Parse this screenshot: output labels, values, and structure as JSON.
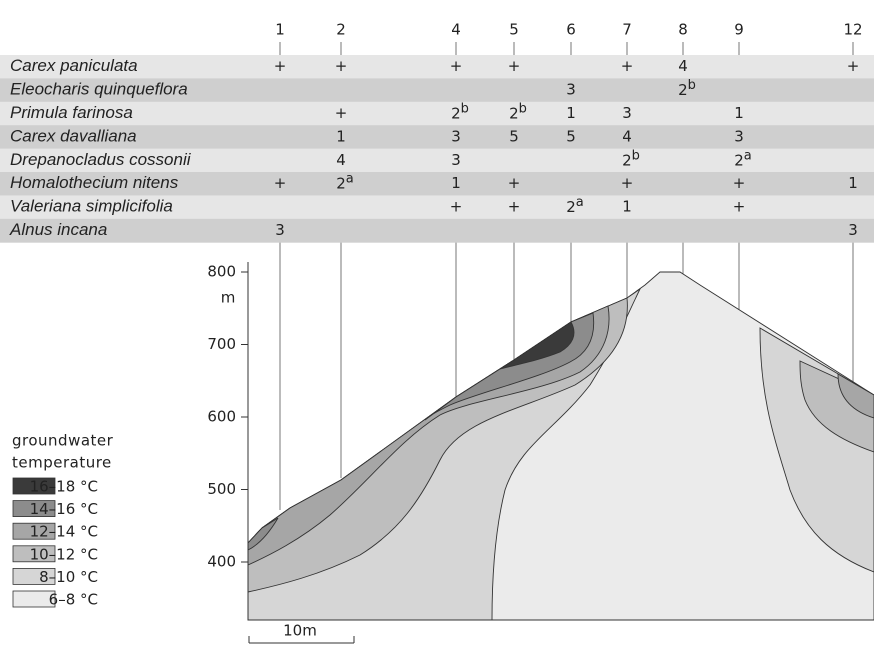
{
  "columns": [
    "1",
    "2",
    "4",
    "5",
    "6",
    "7",
    "8",
    "9",
    "12"
  ],
  "species": [
    {
      "name": "Carex paniculata",
      "cells": [
        "+",
        "+",
        "+",
        "+",
        null,
        "+",
        "4",
        null,
        "+"
      ]
    },
    {
      "name": "Eleocharis quinqueflora",
      "cells": [
        null,
        null,
        null,
        null,
        "3",
        null,
        {
          "text": "2",
          "sup": "b"
        },
        null,
        null
      ]
    },
    {
      "name": "Primula farinosa",
      "cells": [
        null,
        "+",
        {
          "text": "2",
          "sup": "b"
        },
        {
          "text": "2",
          "sup": "b"
        },
        "1",
        "3",
        null,
        "1",
        null
      ]
    },
    {
      "name": "Carex davalliana",
      "cells": [
        null,
        "1",
        "3",
        "5",
        "5",
        "4",
        null,
        "3",
        null
      ]
    },
    {
      "name": "Drepanocladus cossonii",
      "cells": [
        null,
        "4",
        "3",
        null,
        null,
        {
          "text": "2",
          "sup": "b"
        },
        null,
        {
          "text": "2",
          "sup": "a"
        },
        null
      ]
    },
    {
      "name": "Homalothecium nitens",
      "cells": [
        "+",
        {
          "text": "2",
          "sup": "a"
        },
        "1",
        "+",
        null,
        "+",
        null,
        "+",
        "1"
      ]
    },
    {
      "name": "Valeriana simplicifolia",
      "cells": [
        null,
        null,
        "+",
        "+",
        {
          "text": "2",
          "sup": "a"
        },
        "1",
        null,
        "+",
        null
      ]
    },
    {
      "name": "Alnus incana",
      "cells": [
        "3",
        null,
        null,
        null,
        null,
        null,
        null,
        null,
        "3"
      ]
    }
  ],
  "axis": {
    "ticks": [
      800,
      700,
      600,
      500,
      400
    ],
    "unit": "m"
  },
  "legend": {
    "title": [
      "groundwater",
      "temperature"
    ],
    "items": [
      {
        "label": "16–18 °C",
        "color": "#3a3a3a"
      },
      {
        "label": "14–16 °C",
        "color": "#8c8c8c"
      },
      {
        "label": "12–14 °C",
        "color": "#a6a6a6"
      },
      {
        "label": "10–12 °C",
        "color": "#bebebe"
      },
      {
        "label": "8–10 °C",
        "color": "#d6d6d6"
      },
      {
        "label": "6–8 °C",
        "color": "#ebebeb"
      }
    ]
  },
  "scale_bar": "10m"
}
